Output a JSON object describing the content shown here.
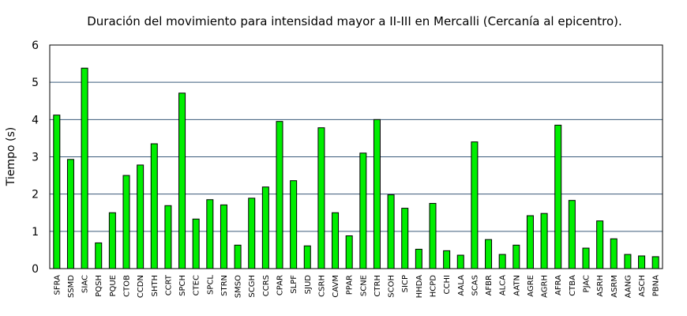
{
  "chart_data": {
    "type": "bar",
    "title": "Duración del movimiento para intensidad mayor a II-III en Mercalli (Cercanía al epicentro).",
    "xlabel": "",
    "ylabel": "Tiempo (s)",
    "ylim": [
      0,
      6
    ],
    "yticks": [
      0,
      1,
      2,
      3,
      4,
      5,
      6
    ],
    "grid": true,
    "legend": "none",
    "bar_color": "#00ee00",
    "categories": [
      "SFRA",
      "SSMD",
      "SIAC",
      "PQSH",
      "PQUE",
      "CTOB",
      "CCDN",
      "SHTH",
      "CCRT",
      "SPCH",
      "CTEC",
      "SPCL",
      "STRN",
      "SMSO",
      "SCGH",
      "CCRS",
      "CPAR",
      "SLPF",
      "SJUD",
      "CSRH",
      "CAVM",
      "PPAR",
      "SCNE",
      "CTRH",
      "SCOH",
      "SICP",
      "HHDA",
      "HCPD",
      "CCHI",
      "AALA",
      "SCAS",
      "AFBR",
      "ALCA",
      "AATN",
      "AGRE",
      "AGRH",
      "AFRA",
      "CTBA",
      "PJAC",
      "ASRH",
      "ASRM",
      "AANG",
      "ASCH",
      "PBNA"
    ],
    "values": [
      4.12,
      2.93,
      5.38,
      0.69,
      1.5,
      2.5,
      2.78,
      3.35,
      1.69,
      4.71,
      1.33,
      1.85,
      1.71,
      0.63,
      1.89,
      2.19,
      3.95,
      2.36,
      0.61,
      3.78,
      1.5,
      0.88,
      3.1,
      4.0,
      1.98,
      1.62,
      0.52,
      1.75,
      0.48,
      0.36,
      3.4,
      0.78,
      0.38,
      0.63,
      1.42,
      1.48,
      3.85,
      1.83,
      0.55,
      1.28,
      0.8,
      0.38,
      0.34,
      0.32
    ]
  }
}
